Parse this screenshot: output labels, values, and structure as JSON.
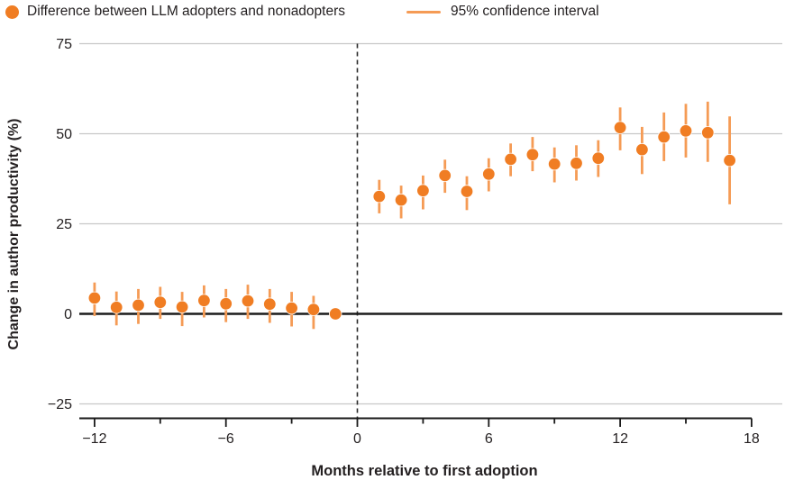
{
  "legend": {
    "series_label": "Difference between LLM adopters and nonadopters",
    "ci_label": "95% confidence interval"
  },
  "colors": {
    "point": "#F07D23",
    "ci_line": "#F59B55",
    "gridline": "#C7C7C7",
    "zero_line": "#1A1A1A",
    "axis": "#1A1A1A",
    "dashed_line": "#2B2B2B",
    "text": "#231F20",
    "background": "#FFFFFF"
  },
  "chart_data": {
    "type": "scatter",
    "title": "",
    "xlabel": "Months relative to first adoption",
    "ylabel": "Change in author productivity (%)",
    "xlim": [
      -13,
      19
    ],
    "ylim": [
      -25,
      75
    ],
    "grid": true,
    "legend_position": "top-left",
    "reference_line_x": 0,
    "zero_line_y": 0,
    "y_ticks": [
      {
        "v": 75,
        "label": "75"
      },
      {
        "v": 50,
        "label": "50"
      },
      {
        "v": 25,
        "label": "25"
      },
      {
        "v": 0,
        "label": "0"
      },
      {
        "v": -25,
        "label": "−25"
      }
    ],
    "x_major_ticks": [
      {
        "v": -12,
        "label": "−12"
      },
      {
        "v": -6,
        "label": "−6"
      },
      {
        "v": 0,
        "label": "0"
      },
      {
        "v": 6,
        "label": "6"
      },
      {
        "v": 12,
        "label": "12"
      },
      {
        "v": 18,
        "label": "18"
      }
    ],
    "x_minor_ticks": [
      -9,
      -3,
      3,
      9,
      15
    ],
    "series": [
      {
        "name": "Difference between LLM adopters and nonadopters",
        "points": [
          {
            "month": -12,
            "value": 4.4,
            "ci_low": -0.6,
            "ci_high": 8.7
          },
          {
            "month": -11,
            "value": 1.8,
            "ci_low": -3.2,
            "ci_high": 6.2
          },
          {
            "month": -10,
            "value": 2.4,
            "ci_low": -2.8,
            "ci_high": 6.9
          },
          {
            "month": -9,
            "value": 3.2,
            "ci_low": -1.4,
            "ci_high": 7.5
          },
          {
            "month": -8,
            "value": 1.9,
            "ci_low": -3.4,
            "ci_high": 6.1
          },
          {
            "month": -7,
            "value": 3.7,
            "ci_low": -1.0,
            "ci_high": 7.9
          },
          {
            "month": -6,
            "value": 2.8,
            "ci_low": -2.3,
            "ci_high": 6.9
          },
          {
            "month": -5,
            "value": 3.6,
            "ci_low": -1.4,
            "ci_high": 8.1
          },
          {
            "month": -4,
            "value": 2.7,
            "ci_low": -2.5,
            "ci_high": 6.9
          },
          {
            "month": -3,
            "value": 1.6,
            "ci_low": -3.5,
            "ci_high": 6.1
          },
          {
            "month": -2,
            "value": 1.2,
            "ci_low": -4.2,
            "ci_high": 5.0
          },
          {
            "month": -1,
            "value": 0.0,
            "ci_low": 0.0,
            "ci_high": 0.0
          },
          {
            "month": 1,
            "value": 32.6,
            "ci_low": 27.9,
            "ci_high": 37.2
          },
          {
            "month": 2,
            "value": 31.6,
            "ci_low": 26.5,
            "ci_high": 35.6
          },
          {
            "month": 3,
            "value": 34.2,
            "ci_low": 29.0,
            "ci_high": 38.4
          },
          {
            "month": 4,
            "value": 38.4,
            "ci_low": 33.6,
            "ci_high": 42.8
          },
          {
            "month": 5,
            "value": 34.0,
            "ci_low": 28.8,
            "ci_high": 38.2
          },
          {
            "month": 6,
            "value": 38.8,
            "ci_low": 34.0,
            "ci_high": 43.2
          },
          {
            "month": 7,
            "value": 42.9,
            "ci_low": 38.2,
            "ci_high": 47.3
          },
          {
            "month": 8,
            "value": 44.2,
            "ci_low": 39.6,
            "ci_high": 49.1
          },
          {
            "month": 9,
            "value": 41.6,
            "ci_low": 36.5,
            "ci_high": 46.2
          },
          {
            "month": 10,
            "value": 41.8,
            "ci_low": 37.0,
            "ci_high": 46.8
          },
          {
            "month": 11,
            "value": 43.2,
            "ci_low": 38.0,
            "ci_high": 48.2
          },
          {
            "month": 12,
            "value": 51.7,
            "ci_low": 45.4,
            "ci_high": 57.3
          },
          {
            "month": 13,
            "value": 45.6,
            "ci_low": 38.8,
            "ci_high": 51.9
          },
          {
            "month": 14,
            "value": 49.1,
            "ci_low": 42.4,
            "ci_high": 55.9
          },
          {
            "month": 15,
            "value": 50.8,
            "ci_low": 43.4,
            "ci_high": 58.3
          },
          {
            "month": 16,
            "value": 50.3,
            "ci_low": 42.2,
            "ci_high": 58.9
          },
          {
            "month": 17,
            "value": 42.6,
            "ci_low": 30.4,
            "ci_high": 54.8
          }
        ]
      }
    ]
  }
}
